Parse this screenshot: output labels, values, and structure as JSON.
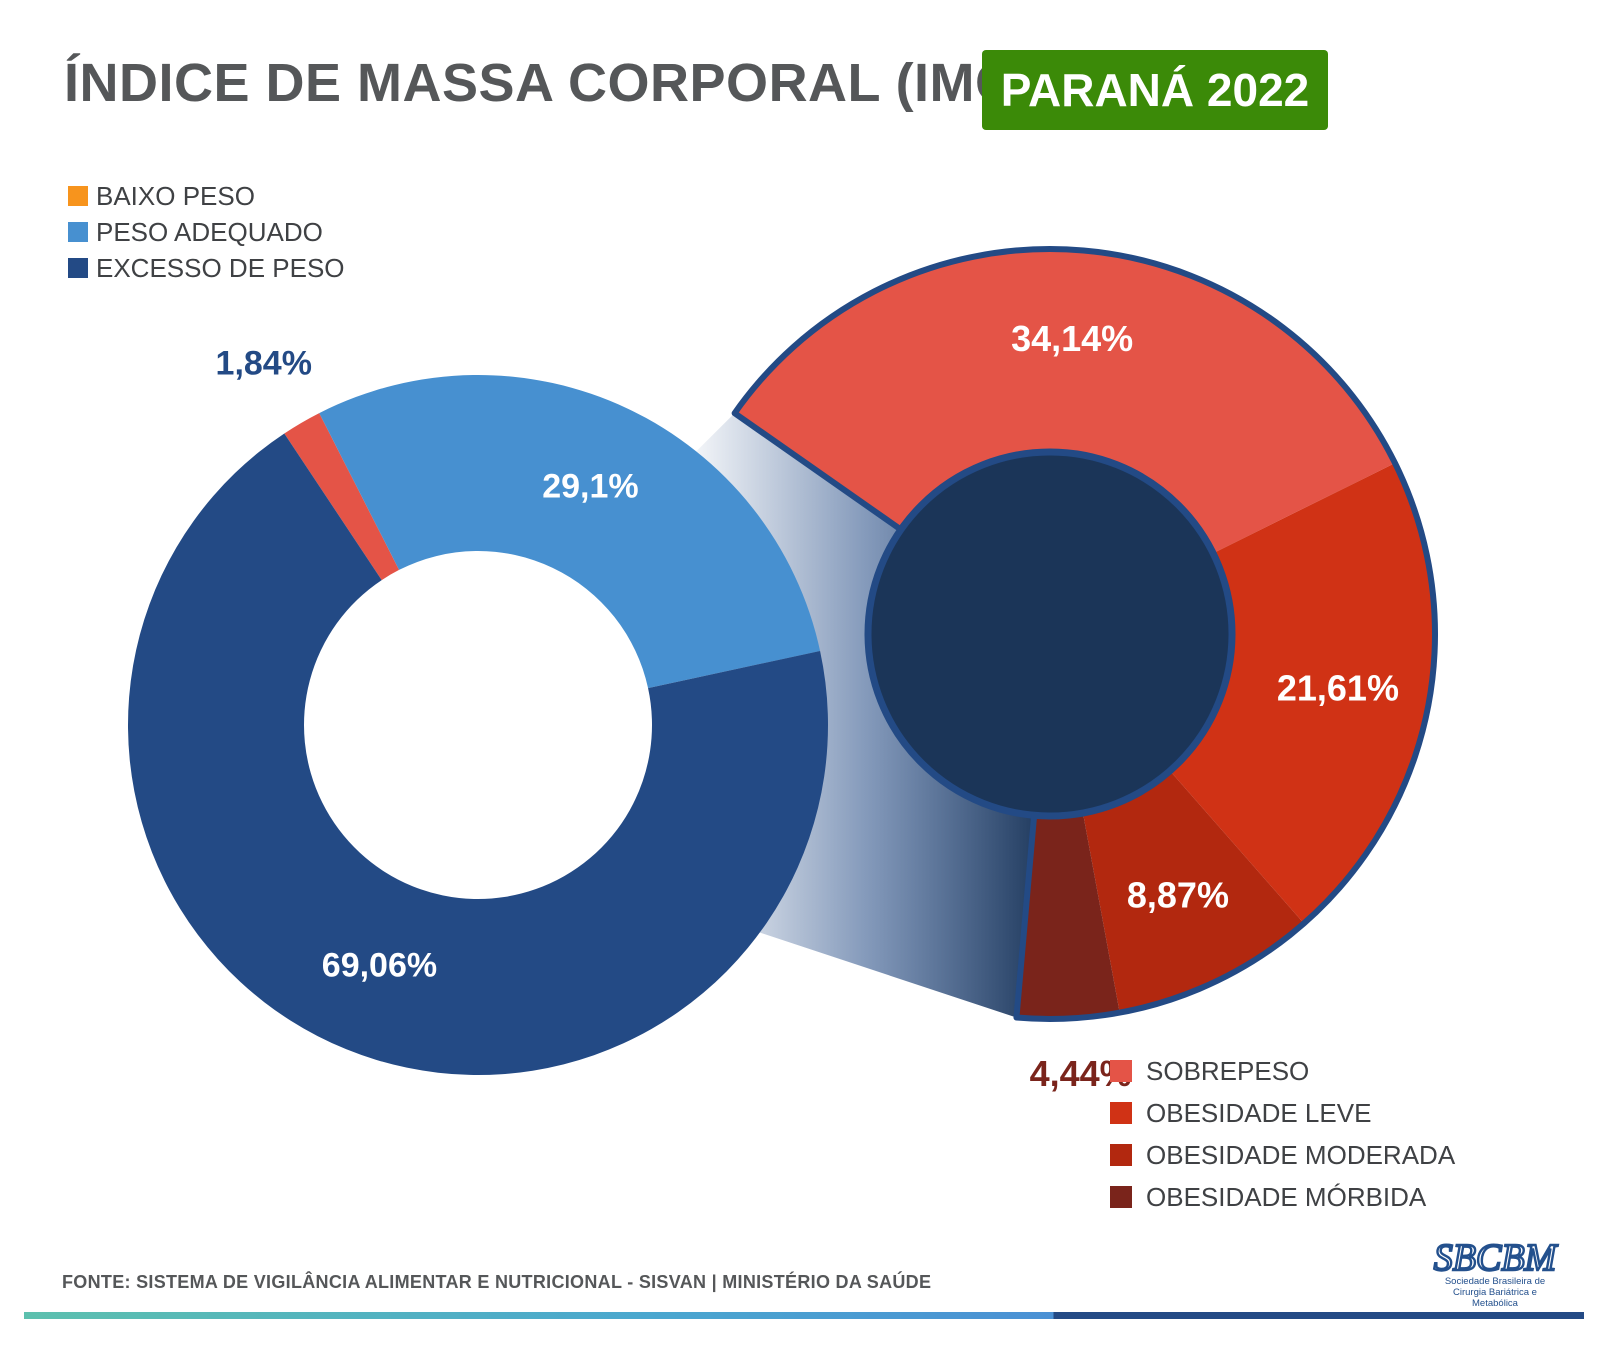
{
  "header": {
    "title": "ÍNDICE DE MASSA CORPORAL (IMC)",
    "badge": "PARANÁ 2022",
    "badge_color": "#3b8a08"
  },
  "legend_main": [
    {
      "label": "BAIXO PESO",
      "color": "#f7941d"
    },
    {
      "label": "PESO ADEQUADO",
      "color": "#4790d0"
    },
    {
      "label": "EXCESSO DE PESO",
      "color": "#234a85"
    }
  ],
  "legend_detail": [
    {
      "label": "SOBREPESO",
      "color": "#e45447"
    },
    {
      "label": "OBESIDADE LEVE",
      "color": "#d03215"
    },
    {
      "label": "OBESIDADE MODERADA",
      "color": "#b2280f"
    },
    {
      "label": "OBESIDADE MÓRBIDA",
      "color": "#7a241b"
    }
  ],
  "chart_data": [
    {
      "type": "pie",
      "variant": "donut",
      "slices": [
        {
          "name": "BAIXO PESO",
          "value": 1.84,
          "label": "1,84%",
          "color": "#e45447"
        },
        {
          "name": "PESO ADEQUADO",
          "value": 29.1,
          "label": "29,1%",
          "color": "#4790d0"
        },
        {
          "name": "EXCESSO DE PESO",
          "value": 69.06,
          "label": "69,06%",
          "color": "#234a85"
        }
      ]
    },
    {
      "type": "pie",
      "variant": "donut",
      "breakdown_of": "EXCESSO DE PESO",
      "slices": [
        {
          "name": "SOBREPESO",
          "value": 34.14,
          "label": "34,14%",
          "color": "#e45447"
        },
        {
          "name": "OBESIDADE LEVE",
          "value": 21.61,
          "label": "21,61%",
          "color": "#d03215"
        },
        {
          "name": "OBESIDADE MODERADA",
          "value": 8.87,
          "label": "8,87%",
          "color": "#b2280f"
        },
        {
          "name": "OBESIDADE MÓRBIDA",
          "value": 4.44,
          "label": "4,44%",
          "color": "#7a241b"
        }
      ]
    }
  ],
  "footer": {
    "source": "FONTE: SISTEMA DE VIGILÂNCIA ALIMENTAR E NUTRICIONAL - SISVAN | MINISTÉRIO DA SAÚDE",
    "logo_text": "SBCBM",
    "logo_sub_1": "Sociedade Brasileira de",
    "logo_sub_2": "Cirurgia Bariátrica e Metabólica"
  }
}
